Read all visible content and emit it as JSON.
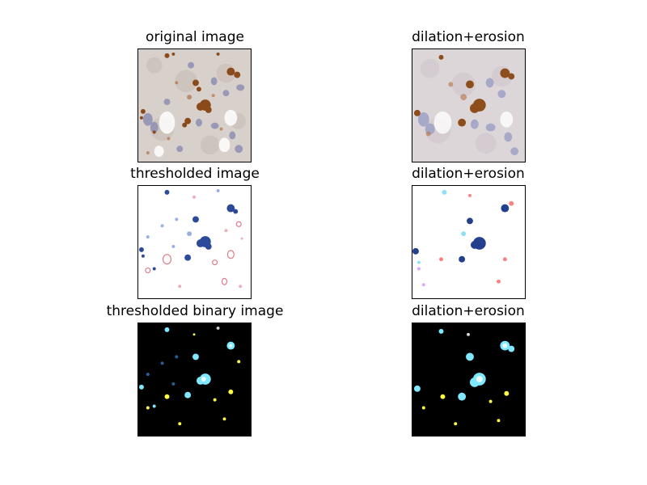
{
  "figure": {
    "background": "#ffffff",
    "panels": [
      {
        "title": "original image",
        "style": "histology-rgb"
      },
      {
        "title": "dilation+erosion",
        "style": "histology-rgb-smoothed"
      },
      {
        "title": "thresholded image",
        "style": "thresholded-on-white"
      },
      {
        "title": "dilation+erosion",
        "style": "thresholded-on-white-smoothed"
      },
      {
        "title": "thresholded binary image",
        "style": "binary-on-black"
      },
      {
        "title": "dilation+erosion",
        "style": "binary-on-black-smoothed"
      }
    ]
  },
  "colors": {
    "tissue_background": "#d9d2ce",
    "brown_stain": "#8b4a1a",
    "hematoxylin_nuclei": "#8a8fb8",
    "threshold_blue": "#2d4a9a",
    "threshold_pink": "#e07a8a",
    "binary_background": "#000000",
    "binary_cyan": "#7fe8ff",
    "binary_yellow": "#ffff40"
  }
}
